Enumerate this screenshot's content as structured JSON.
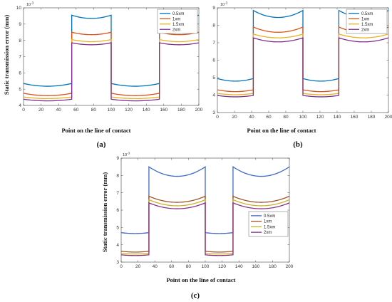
{
  "chart_data": [
    {
      "type": "line",
      "panel_label": "(a)",
      "xlabel": "Point on the line of contact",
      "ylabel": "Static transmission error (mm)",
      "y_exponent": "10",
      "y_exponent_power": "-3",
      "xlim": [
        0,
        200
      ],
      "ylim": [
        4,
        10
      ],
      "x_ticks": [
        0,
        20,
        40,
        60,
        80,
        100,
        120,
        140,
        160,
        180,
        200
      ],
      "y_ticks": [
        4,
        5,
        6,
        7,
        8,
        9,
        10
      ],
      "legend_position": "top-right",
      "contact_profile": {
        "transitions": [
          55,
          100,
          155,
          200
        ],
        "start_state": "single",
        "x_end": 200
      },
      "series": [
        {
          "name": "0.5xm",
          "color": "#0072BD",
          "double": {
            "edge": 9.55,
            "mid": 9.35
          },
          "single": {
            "edge": 5.35,
            "mid": 5.18
          }
        },
        {
          "name": "1xm",
          "color": "#D95319",
          "double": {
            "edge": 8.5,
            "mid": 8.35
          },
          "single": {
            "edge": 4.75,
            "mid": 4.6
          }
        },
        {
          "name": "1.5xm",
          "color": "#EDB120",
          "double": {
            "edge": 8.05,
            "mid": 7.92
          },
          "single": {
            "edge": 4.52,
            "mid": 4.42
          }
        },
        {
          "name": "2xm",
          "color": "#7E2F8E",
          "double": {
            "edge": 7.85,
            "mid": 7.73
          },
          "single": {
            "edge": 4.38,
            "mid": 4.28
          }
        }
      ]
    },
    {
      "type": "line",
      "panel_label": "(b)",
      "xlabel": "Point on the line of contact",
      "ylabel": "",
      "y_exponent": "10",
      "y_exponent_power": "-3",
      "xlim": [
        0,
        200
      ],
      "ylim": [
        3,
        9
      ],
      "x_ticks": [
        0,
        20,
        40,
        60,
        80,
        100,
        120,
        140,
        160,
        180,
        200
      ],
      "y_ticks": [
        3,
        4,
        5,
        6,
        7,
        8,
        9
      ],
      "legend_position": "top-right",
      "contact_profile": {
        "transitions": [
          42,
          100,
          142,
          200
        ],
        "start_state": "single",
        "x_end": 200
      },
      "series": [
        {
          "name": "0.5xm",
          "color": "#0072BD",
          "double": {
            "edge": 8.85,
            "mid": 8.45
          },
          "single": {
            "edge": 4.95,
            "mid": 4.8
          }
        },
        {
          "name": "1xm",
          "color": "#D95319",
          "double": {
            "edge": 7.9,
            "mid": 7.6
          },
          "single": {
            "edge": 4.3,
            "mid": 4.2
          }
        },
        {
          "name": "1.5xm",
          "color": "#EDB120",
          "double": {
            "edge": 7.5,
            "mid": 7.28
          },
          "single": {
            "edge": 4.1,
            "mid": 4.02
          }
        },
        {
          "name": "2xm",
          "color": "#7E2F8E",
          "double": {
            "edge": 7.28,
            "mid": 7.05
          },
          "single": {
            "edge": 3.98,
            "mid": 3.9
          }
        }
      ]
    },
    {
      "type": "line",
      "panel_label": "(c)",
      "xlabel": "Point on the line of contact",
      "ylabel": "Static transmission error (mm)",
      "y_exponent": "10",
      "y_exponent_power": "-3",
      "xlim": [
        0,
        200
      ],
      "ylim": [
        3,
        9
      ],
      "x_ticks": [
        0,
        20,
        40,
        60,
        80,
        100,
        120,
        140,
        160,
        180,
        200
      ],
      "y_ticks": [
        3,
        4,
        5,
        6,
        7,
        8,
        9
      ],
      "legend_position": "right",
      "contact_profile": {
        "transitions": [
          33,
          100,
          133,
          200
        ],
        "start_state": "single",
        "x_end": 200
      },
      "series": [
        {
          "name": "0.5xm",
          "color": "#4169C8",
          "double": {
            "edge": 8.5,
            "mid": 7.95
          },
          "single": {
            "edge": 4.7,
            "mid": 4.65
          }
        },
        {
          "name": "1xm",
          "color": "#A0522D",
          "double": {
            "edge": 6.8,
            "mid": 6.45
          },
          "single": {
            "edge": 3.63,
            "mid": 3.58
          }
        },
        {
          "name": "1.5xm",
          "color": "#C8B428",
          "double": {
            "edge": 6.6,
            "mid": 6.25
          },
          "single": {
            "edge": 3.5,
            "mid": 3.47
          }
        },
        {
          "name": "2xm",
          "color": "#8B2F8B",
          "double": {
            "edge": 6.42,
            "mid": 6.08
          },
          "single": {
            "edge": 3.42,
            "mid": 3.38
          }
        }
      ]
    }
  ]
}
